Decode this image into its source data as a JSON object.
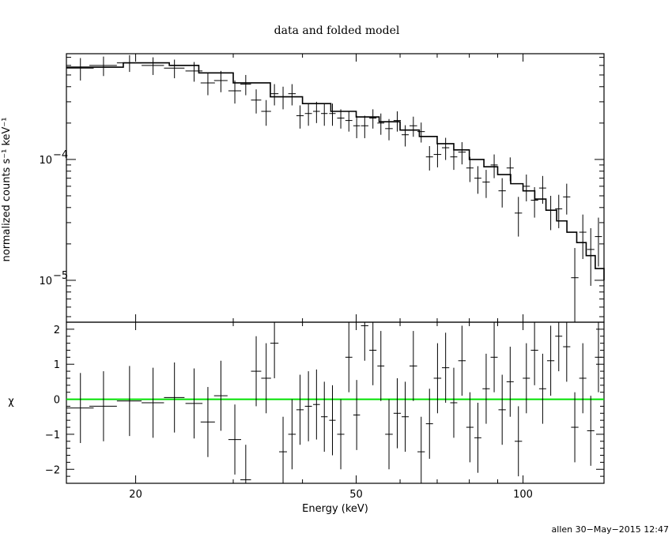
{
  "chart_data": [
    {
      "type": "scatter",
      "title": "data and folded model",
      "ylabel": "normalized counts s⁻¹ keV⁻¹",
      "xlabel": "",
      "x_scale": "log",
      "y_scale": "log",
      "xlim": [
        15,
        140
      ],
      "ylim": [
        4.5e-06,
        0.00075
      ],
      "y_ticks": [
        {
          "value": 0.0001,
          "base": "10",
          "exp": "−4"
        },
        {
          "value": 1e-05,
          "base": "10",
          "exp": "−5"
        }
      ],
      "grid": false,
      "colors": {
        "data": "#000000",
        "model": "#000000"
      },
      "series": [
        {
          "kind": "data",
          "points": [
            [
              15.9,
              0.00057,
              0.9,
              0.00012
            ],
            [
              17.5,
              0.0006,
              1.0,
              0.00011
            ],
            [
              19.5,
              0.00063,
              1.0,
              0.0001
            ],
            [
              21.5,
              0.0006,
              1.0,
              0.0001
            ],
            [
              23.5,
              0.00057,
              1.0,
              0.0001
            ],
            [
              25.5,
              0.00054,
              0.9,
              0.0001
            ],
            [
              27.0,
              0.00043,
              0.8,
              9e-05
            ],
            [
              28.5,
              0.00045,
              0.8,
              9e-05
            ],
            [
              30.2,
              0.00037,
              0.8,
              8e-05
            ],
            [
              31.6,
              0.00042,
              0.7,
              8e-05
            ],
            [
              33.0,
              0.00031,
              0.7,
              7e-05
            ],
            [
              34.4,
              0.00025,
              0.7,
              6e-05
            ],
            [
              35.6,
              0.00035,
              0.6,
              7e-05
            ],
            [
              36.9,
              0.00033,
              0.6,
              7e-05
            ],
            [
              38.3,
              0.00035,
              0.6,
              7e-05
            ],
            [
              39.6,
              0.00023,
              0.6,
              5e-05
            ],
            [
              41.0,
              0.00024,
              0.6,
              5e-05
            ],
            [
              42.4,
              0.00025,
              0.6,
              5e-05
            ],
            [
              43.8,
              0.00024,
              0.6,
              5e-05
            ],
            [
              45.3,
              0.00024,
              0.6,
              5e-05
            ],
            [
              46.9,
              0.00022,
              0.7,
              4e-05
            ],
            [
              48.5,
              0.00021,
              0.7,
              4e-05
            ],
            [
              50.1,
              0.00019,
              0.7,
              4e-05
            ],
            [
              51.8,
              0.00019,
              0.8,
              4e-05
            ],
            [
              53.6,
              0.00022,
              0.8,
              4e-05
            ],
            [
              55.4,
              0.0002,
              0.8,
              4e-05
            ],
            [
              57.3,
              0.00018,
              0.9,
              3.6e-05
            ],
            [
              59.3,
              0.00021,
              0.9,
              4e-05
            ],
            [
              61.3,
              0.00016,
              0.9,
              3.2e-05
            ],
            [
              63.4,
              0.00019,
              1.0,
              3.6e-05
            ],
            [
              65.5,
              0.00017,
              1.0,
              3.2e-05
            ],
            [
              67.8,
              0.000105,
              1.0,
              2.4e-05
            ],
            [
              70.1,
              0.00011,
              1.1,
              2.4e-05
            ],
            [
              72.5,
              0.000125,
              1.1,
              2.6e-05
            ],
            [
              75.0,
              0.000105,
              1.1,
              2.3e-05
            ],
            [
              77.6,
              0.000115,
              1.2,
              2.4e-05
            ],
            [
              80.2,
              8.5e-05,
              1.2,
              2e-05
            ],
            [
              82.9,
              7e-05,
              1.2,
              1.8e-05
            ],
            [
              85.8,
              6.5e-05,
              1.3,
              1.7e-05
            ],
            [
              88.7,
              9e-05,
              1.3,
              2e-05
            ],
            [
              91.7,
              5.5e-05,
              1.4,
              1.5e-05
            ],
            [
              94.8,
              8.5e-05,
              1.4,
              1.9e-05
            ],
            [
              98.1,
              3.6e-05,
              1.5,
              1.3e-05
            ],
            [
              101.4,
              6e-05,
              1.5,
              1.5e-05
            ],
            [
              104.9,
              4.6e-05,
              1.6,
              1.3e-05
            ],
            [
              108.5,
              5.8e-05,
              1.6,
              1.5e-05
            ],
            [
              112.2,
              3.8e-05,
              1.7,
              1.2e-05
            ],
            [
              116.0,
              3.9e-05,
              1.7,
              1.2e-05
            ],
            [
              119.9,
              4.9e-05,
              1.8,
              1.4e-05
            ],
            [
              124.0,
              1.05e-05,
              1.9,
              8e-06
            ],
            [
              128.2,
              2.5e-05,
              1.9,
              1e-05
            ],
            [
              132.5,
              1.8e-05,
              2.0,
              9e-06
            ],
            [
              136.8,
              2.3e-05,
              2.0,
              1e-05
            ]
          ]
        },
        {
          "kind": "model",
          "points": [
            [
              15.0,
              0.00058
            ],
            [
              19.0,
              0.00063
            ],
            [
              23.0,
              0.0006
            ],
            [
              26.0,
              0.00052
            ],
            [
              30.0,
              0.00043
            ],
            [
              35.0,
              0.00033
            ],
            [
              40.0,
              0.00029
            ],
            [
              45.0,
              0.00025
            ],
            [
              50.0,
              0.000225
            ],
            [
              55.0,
              0.000205
            ],
            [
              60.0,
              0.000175
            ],
            [
              65.0,
              0.000155
            ],
            [
              70.0,
              0.000135
            ],
            [
              75.0,
              0.00012
            ],
            [
              80.0,
              0.0001
            ],
            [
              85.0,
              8.7e-05
            ],
            [
              90.0,
              7.5e-05
            ],
            [
              95.0,
              6.3e-05
            ],
            [
              100.0,
              5.5e-05
            ],
            [
              105.0,
              4.7e-05
            ],
            [
              110.0,
              3.8e-05
            ],
            [
              115.0,
              3.1e-05
            ],
            [
              120.0,
              2.5e-05
            ],
            [
              125.0,
              2.05e-05
            ],
            [
              130.0,
              1.6e-05
            ],
            [
              135.0,
              1.25e-05
            ],
            [
              140.0,
              1e-05
            ]
          ]
        }
      ]
    },
    {
      "type": "scatter",
      "title": "",
      "ylabel": "χ",
      "xlabel": "Energy (keV)",
      "x_scale": "log",
      "y_scale": "linear",
      "xlim": [
        15,
        140
      ],
      "ylim": [
        -2.4,
        2.2
      ],
      "x_ticks": [
        20,
        50,
        100
      ],
      "y_ticks": [
        {
          "value": 2,
          "text": "2"
        },
        {
          "value": 1,
          "text": "1"
        },
        {
          "value": 0,
          "text": "0"
        },
        {
          "value": -1,
          "text": "−1"
        },
        {
          "value": -2,
          "text": "−2"
        }
      ],
      "grid": false,
      "colors": {
        "data": "#000000",
        "zero_line": "#00e000"
      },
      "series": [
        {
          "kind": "residuals",
          "points": [
            [
              15.9,
              -0.25,
              0.9,
              1.0
            ],
            [
              17.5,
              -0.2,
              1.0,
              1.0
            ],
            [
              19.5,
              -0.05,
              1.0,
              1.0
            ],
            [
              21.5,
              -0.1,
              1.0,
              1.0
            ],
            [
              23.5,
              0.05,
              1.0,
              1.0
            ],
            [
              25.5,
              -0.12,
              0.9,
              1.0
            ],
            [
              27.0,
              -0.65,
              0.8,
              1.0
            ],
            [
              28.5,
              0.1,
              0.8,
              1.0
            ],
            [
              30.2,
              -1.15,
              0.8,
              1.0
            ],
            [
              31.6,
              -2.3,
              0.7,
              1.0
            ],
            [
              33.0,
              0.8,
              0.7,
              1.0
            ],
            [
              34.4,
              0.6,
              0.7,
              1.0
            ],
            [
              35.6,
              1.6,
              0.6,
              1.0
            ],
            [
              36.9,
              -1.5,
              0.6,
              1.0
            ],
            [
              38.3,
              -1.0,
              0.6,
              1.0
            ],
            [
              39.6,
              -0.3,
              0.6,
              1.0
            ],
            [
              41.0,
              -0.2,
              0.6,
              1.0
            ],
            [
              42.4,
              -0.15,
              0.6,
              1.0
            ],
            [
              43.8,
              -0.5,
              0.6,
              1.0
            ],
            [
              45.3,
              -0.6,
              0.6,
              1.0
            ],
            [
              46.9,
              -1.0,
              0.7,
              1.0
            ],
            [
              48.5,
              1.2,
              0.7,
              1.0
            ],
            [
              50.1,
              -0.45,
              0.7,
              1.0
            ],
            [
              51.8,
              2.1,
              0.8,
              1.0
            ],
            [
              53.6,
              1.4,
              0.8,
              1.0
            ],
            [
              55.4,
              0.95,
              0.8,
              1.0
            ],
            [
              57.3,
              -1.0,
              0.9,
              1.0
            ],
            [
              59.3,
              -0.4,
              0.9,
              1.0
            ],
            [
              61.3,
              -0.5,
              0.9,
              1.0
            ],
            [
              63.4,
              0.95,
              1.0,
              1.0
            ],
            [
              65.5,
              -1.5,
              1.0,
              1.0
            ],
            [
              67.8,
              -0.7,
              1.0,
              1.0
            ],
            [
              70.1,
              0.6,
              1.1,
              1.0
            ],
            [
              72.5,
              0.9,
              1.1,
              1.0
            ],
            [
              75.0,
              -0.1,
              1.1,
              1.0
            ],
            [
              77.6,
              1.1,
              1.2,
              1.0
            ],
            [
              80.2,
              -0.8,
              1.2,
              1.0
            ],
            [
              82.9,
              -1.1,
              1.2,
              1.0
            ],
            [
              85.8,
              0.3,
              1.3,
              1.0
            ],
            [
              88.7,
              1.2,
              1.3,
              1.0
            ],
            [
              91.7,
              -0.3,
              1.4,
              1.0
            ],
            [
              94.8,
              0.5,
              1.4,
              1.0
            ],
            [
              98.1,
              -1.2,
              1.5,
              1.0
            ],
            [
              101.4,
              0.6,
              1.5,
              1.0
            ],
            [
              104.9,
              1.4,
              1.6,
              1.0
            ],
            [
              108.5,
              0.3,
              1.6,
              1.0
            ],
            [
              112.2,
              1.1,
              1.7,
              1.0
            ],
            [
              116.0,
              1.8,
              1.7,
              1.0
            ],
            [
              119.9,
              1.5,
              1.8,
              1.0
            ],
            [
              124.0,
              -0.8,
              1.9,
              1.0
            ],
            [
              128.2,
              0.6,
              1.9,
              1.0
            ],
            [
              132.5,
              -0.9,
              2.0,
              1.0
            ],
            [
              136.8,
              1.2,
              2.0,
              1.0
            ]
          ]
        }
      ]
    }
  ],
  "footer": {
    "stamp": "allen 30−May−2015 12:47"
  }
}
